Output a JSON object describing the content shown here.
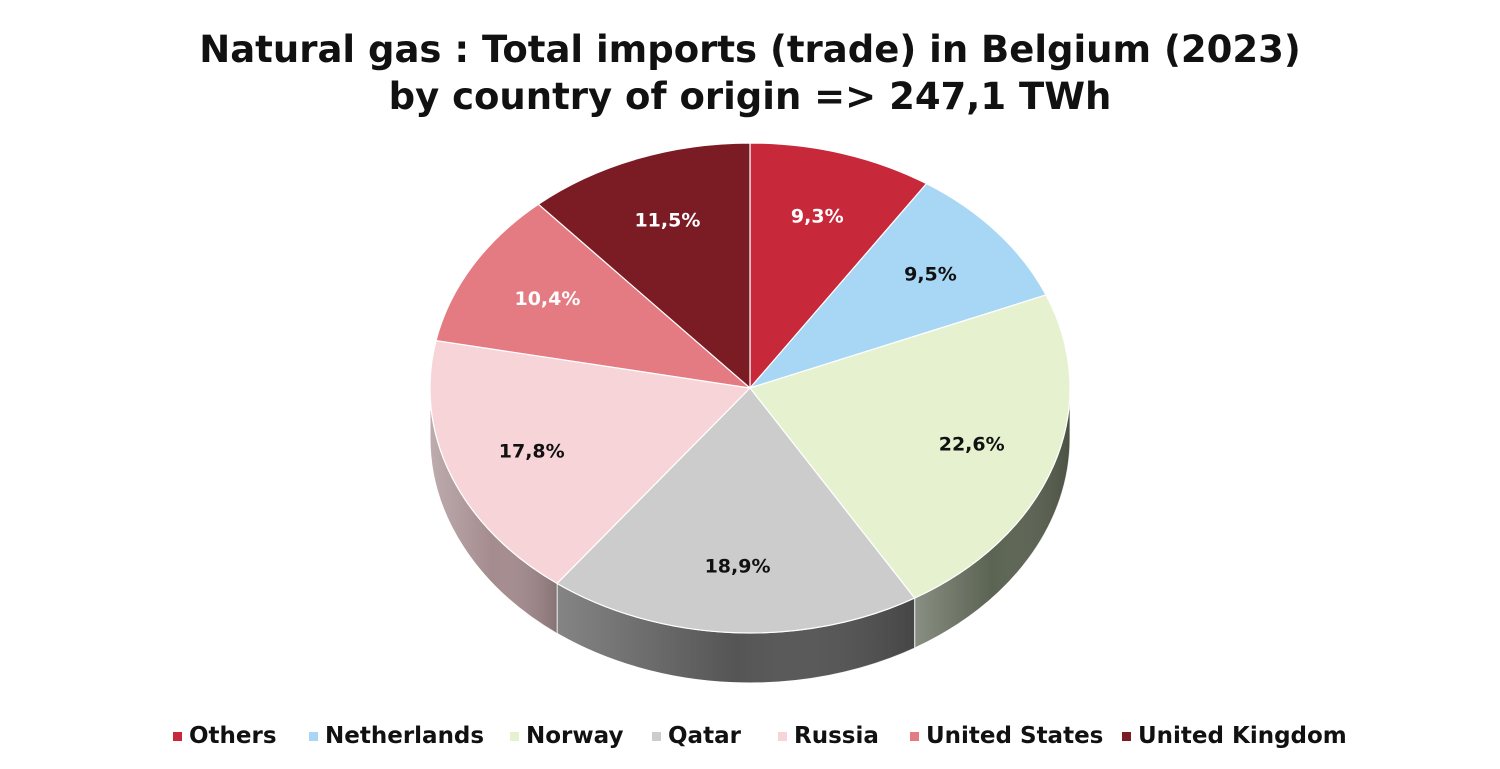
{
  "chart_data": {
    "type": "pie",
    "title": "Natural gas : Total imports (trade) in Belgium (2023)",
    "subtitle": "by country of origin => 247,1 TWh",
    "categories": [
      "Others",
      "Netherlands",
      "Norway",
      "Qatar",
      "Russia",
      "United States",
      "United Kingdom"
    ],
    "values": [
      9.3,
      9.5,
      22.6,
      18.9,
      17.8,
      10.4,
      11.5
    ],
    "data_labels": [
      "9,3%",
      "9,5%",
      "22,6%",
      "18,9%",
      "17,8%",
      "10,4%",
      "11,5%"
    ],
    "unit": "%",
    "legend": "bottom",
    "colors": [
      "#c8293a",
      "#a8d6f5",
      "#e6f2cf",
      "#cccccc",
      "#f7d4d8",
      "#e47a82",
      "#7b1b24"
    ],
    "side_colors": [
      "#7a1822",
      "#6a8aa0",
      "#5b6352",
      "#555555",
      "#a48b8e",
      "#8a4a50",
      "#4a1016"
    ],
    "label_colors": [
      "#ffffff",
      "#111111",
      "#111111",
      "#111111",
      "#111111",
      "#ffffff",
      "#ffffff"
    ]
  }
}
